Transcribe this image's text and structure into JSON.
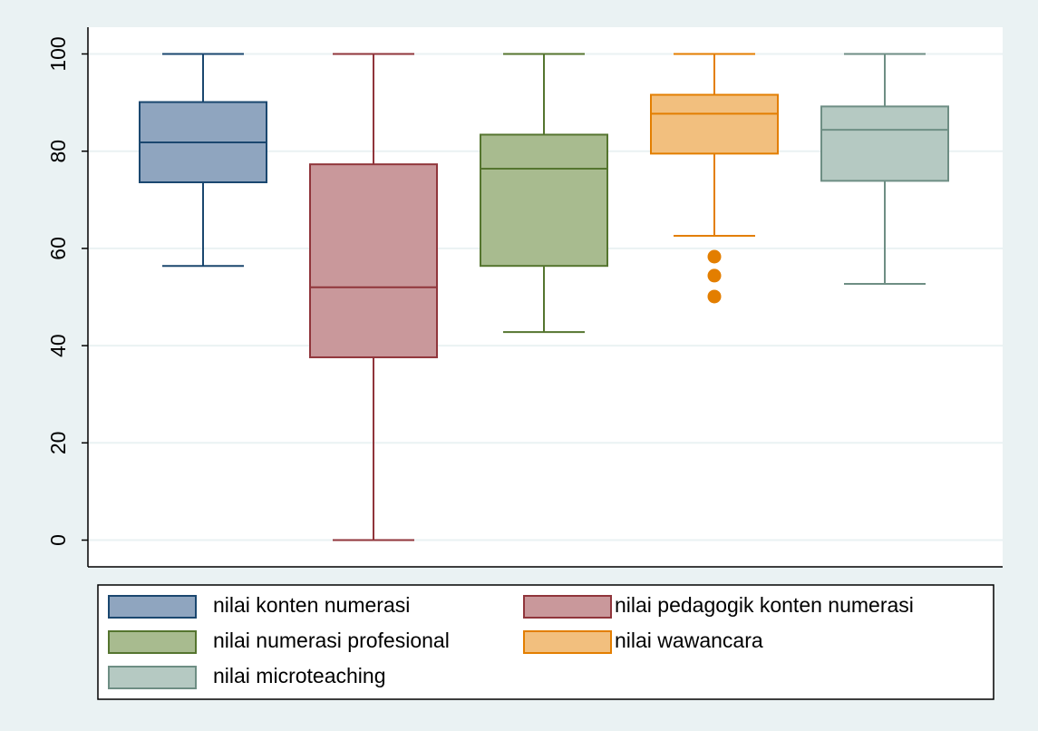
{
  "chart_data": {
    "type": "box",
    "ylim": [
      -5.5,
      105.5
    ],
    "yticks": [
      0,
      20,
      40,
      60,
      80,
      100
    ],
    "grid": true,
    "legend": "bottom",
    "series": [
      {
        "name": "nilai konten numerasi",
        "color": "#8fa5bf",
        "stroke": "#1a476f",
        "min": 56.4,
        "q1": 73.6,
        "median": 81.8,
        "q3": 90.1,
        "max": 100,
        "outliers": []
      },
      {
        "name": "nilai pedagogik konten numerasi",
        "color": "#c9989b",
        "stroke": "#90353b",
        "min": 0,
        "q1": 37.6,
        "median": 52.0,
        "q3": 77.3,
        "max": 100,
        "outliers": []
      },
      {
        "name": "nilai numerasi profesional",
        "color": "#a8bb8f",
        "stroke": "#55752f",
        "min": 42.8,
        "q1": 56.4,
        "median": 76.4,
        "q3": 83.4,
        "max": 100,
        "outliers": []
      },
      {
        "name": "nilai wawancara",
        "color": "#f2bf7e",
        "stroke": "#e37e00",
        "min": 62.6,
        "q1": 79.5,
        "median": 87.7,
        "q3": 91.6,
        "max": 100,
        "outliers": [
          58.3,
          54.4,
          50.1
        ]
      },
      {
        "name": "nilai microteaching",
        "color": "#b5c9c2",
        "stroke": "#6e8e84",
        "min": 52.7,
        "q1": 73.9,
        "median": 84.4,
        "q3": 89.2,
        "max": 100,
        "outliers": []
      }
    ]
  }
}
